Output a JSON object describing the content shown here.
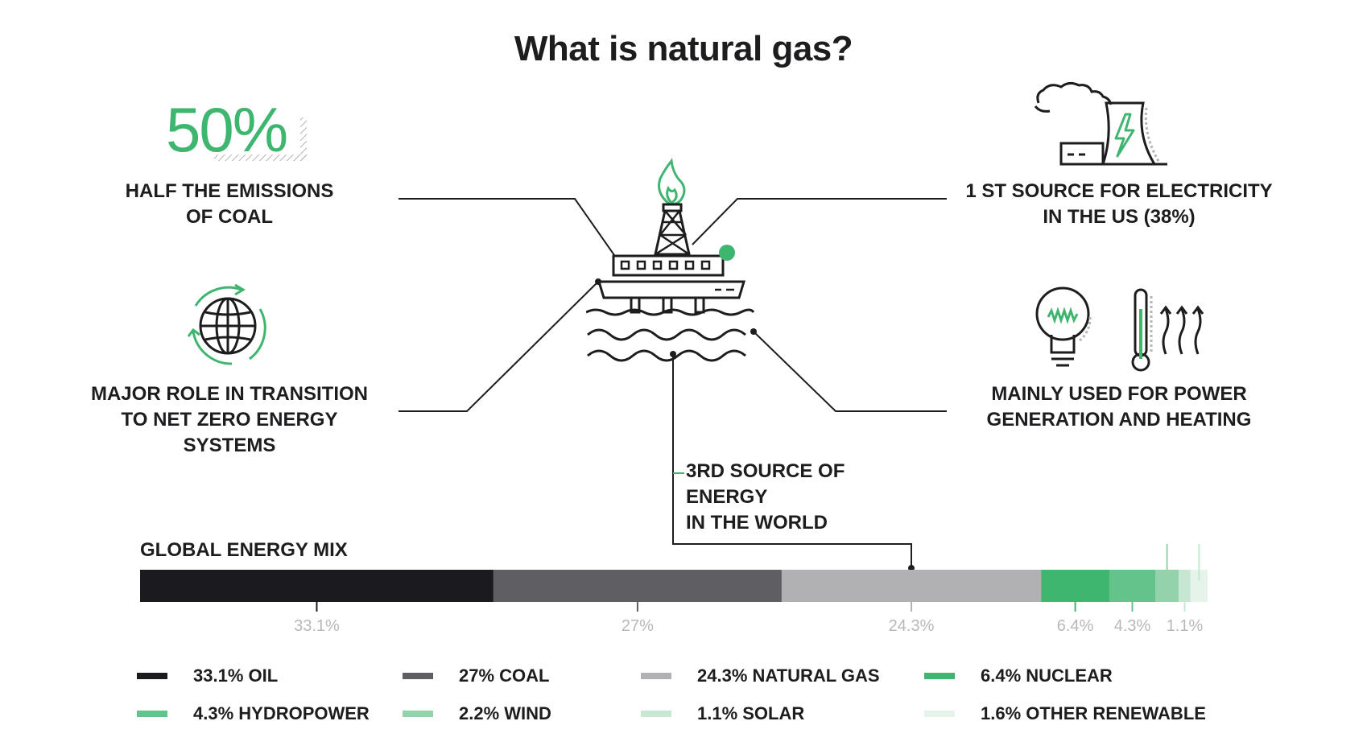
{
  "title": "What is natural gas?",
  "stat_50": "50%",
  "captions": {
    "emissions": [
      "HALF THE EMISSIONS",
      "OF COAL"
    ],
    "transition": [
      "MAJOR ROLE IN TRANSITION",
      "TO NET ZERO ENERGY",
      "SYSTEMS"
    ],
    "electricity": [
      "1 ST SOURCE FOR ELECTRICITY",
      "IN THE US (38%)"
    ],
    "power": [
      "MAINLY USED FOR POWER",
      "GENERATION AND HEATING"
    ],
    "world": [
      "3RD SOURCE OF ENERGY",
      "IN THE WORLD"
    ]
  },
  "colors": {
    "green": "#3fb66f",
    "dark": "#1d1d1f",
    "line": "#1d1d1f"
  },
  "chart_data": {
    "type": "bar",
    "title": "GLOBAL ENERGY MIX",
    "orientation": "stacked-horizontal",
    "categories": [
      "OIL",
      "COAL",
      "NATURAL GAS",
      "NUCLEAR",
      "HYDROPOWER",
      "WIND",
      "SOLAR",
      "OTHER RENEWABLE"
    ],
    "values": [
      33.1,
      27,
      24.3,
      6.4,
      4.3,
      2.2,
      1.1,
      1.6
    ],
    "value_labels": [
      "33.1%",
      "27%",
      "24.3%",
      "6.4%",
      "4.3%",
      "2.2%",
      "1.1%",
      "1.6%"
    ],
    "label_position": [
      "below",
      "below",
      "below",
      "below",
      "below",
      "above",
      "below",
      "above"
    ],
    "colors": [
      "#1b1a1f",
      "#5f5e63",
      "#b1b1b3",
      "#3fb66f",
      "#63c38a",
      "#93d2ab",
      "#c7e7d3",
      "#e6f3ea"
    ],
    "legend": [
      "33.1% OIL",
      "27% COAL",
      "24.3% NATURAL GAS",
      "6.4% NUCLEAR",
      "4.3% HYDROPOWER",
      "2.2% WIND",
      "1.1% SOLAR",
      "1.6% OTHER RENEWABLE"
    ]
  }
}
